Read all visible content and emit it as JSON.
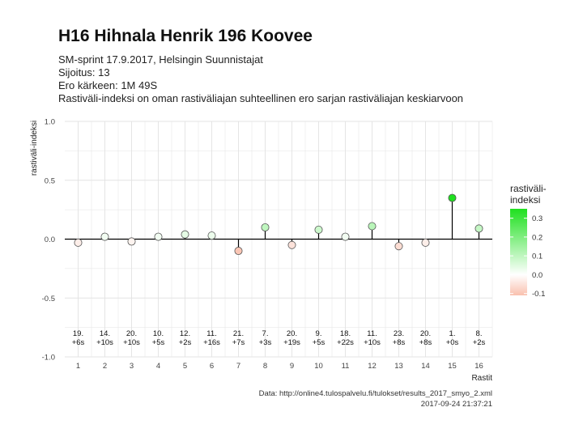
{
  "header": {
    "title": "H16 Hihnala Henrik 196 Koovee",
    "subtitle_lines": [
      "SM-sprint 17.9.2017, Helsingin Suunnistajat",
      "Sijoitus: 13",
      "Ero kärkeen: 1M 49S",
      "Rastiväli-indeksi on oman rastiväliajan suhteellinen ero sarjan rastiväliajan keskiarvoon"
    ]
  },
  "footer": {
    "source": "Data: http://online4.tulospalvelu.fi/tulokset/results_2017_smyo_2.xml",
    "timestamp": "2017-09-24 21:37:21"
  },
  "chart_data": {
    "type": "scatter",
    "style": "lollipop",
    "xlabel": "Rastit",
    "ylabel": "rastiväli-indeksi",
    "x": [
      1,
      2,
      3,
      4,
      5,
      6,
      7,
      8,
      9,
      10,
      11,
      12,
      13,
      14,
      15,
      16
    ],
    "values": [
      -0.03,
      0.02,
      -0.02,
      0.02,
      0.04,
      0.03,
      -0.1,
      0.1,
      -0.05,
      0.08,
      0.02,
      0.11,
      -0.06,
      -0.03,
      0.35,
      0.09
    ],
    "annotations": [
      {
        "rank": "19.",
        "diff": "+6s"
      },
      {
        "rank": "14.",
        "diff": "+10s"
      },
      {
        "rank": "20.",
        "diff": "+10s"
      },
      {
        "rank": "10.",
        "diff": "+5s"
      },
      {
        "rank": "12.",
        "diff": "+2s"
      },
      {
        "rank": "11.",
        "diff": "+16s"
      },
      {
        "rank": "21.",
        "diff": "+7s"
      },
      {
        "rank": "7.",
        "diff": "+3s"
      },
      {
        "rank": "20.",
        "diff": "+19s"
      },
      {
        "rank": "9.",
        "diff": "+5s"
      },
      {
        "rank": "18.",
        "diff": "+22s"
      },
      {
        "rank": "11.",
        "diff": "+10s"
      },
      {
        "rank": "23.",
        "diff": "+8s"
      },
      {
        "rank": "20.",
        "diff": "+8s"
      },
      {
        "rank": "1.",
        "diff": "+0s"
      },
      {
        "rank": "8.",
        "diff": "+2s"
      }
    ],
    "xlim": [
      0.5,
      16.5
    ],
    "ylim": [
      -1.0,
      1.0
    ],
    "yticks": [
      "1.0",
      "0.5",
      "0.0",
      "-0.5",
      "-1.0"
    ],
    "xticks": [
      "1",
      "2",
      "3",
      "4",
      "5",
      "6",
      "7",
      "8",
      "9",
      "10",
      "11",
      "12",
      "13",
      "14",
      "15",
      "16"
    ],
    "grid": true,
    "legend": {
      "title_lines": [
        "rastiväli-",
        "indeksi"
      ],
      "ticks": [
        "0.3",
        "0.2",
        "0.1",
        "0.0",
        "-0.1"
      ],
      "range": [
        -0.11,
        0.35
      ],
      "placement": "right"
    },
    "colors": {
      "negative": "#f9c0ae",
      "neutral": "#ffffff",
      "positive": "#1fe01f",
      "grid": "#e3e3e3",
      "zero_line": "#000000"
    }
  }
}
